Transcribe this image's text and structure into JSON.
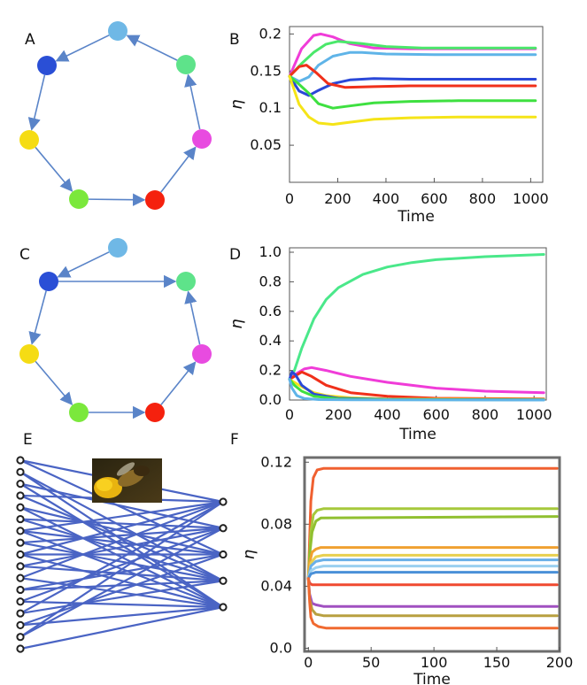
{
  "panels": {
    "A": {
      "label": "A"
    },
    "B": {
      "label": "B"
    },
    "C": {
      "label": "C"
    },
    "D": {
      "label": "D"
    },
    "E": {
      "label": "E"
    },
    "F": {
      "label": "F"
    }
  },
  "graphs": {
    "A": {
      "node_colors": [
        "#6fb8e6",
        "#5ee38a",
        "#e84be0",
        "#f5210e",
        "#7be83c",
        "#f5dc14",
        "#2a4fd6"
      ],
      "edges": [
        [
          1,
          0
        ],
        [
          0,
          6
        ],
        [
          6,
          5
        ],
        [
          5,
          4
        ],
        [
          4,
          3
        ],
        [
          3,
          2
        ],
        [
          2,
          1
        ]
      ],
      "edge_color": "#5a84c8"
    },
    "C": {
      "node_colors": [
        "#6fb8e6",
        "#5ee38a",
        "#e84be0",
        "#f5210e",
        "#7be83c",
        "#f5dc14",
        "#2a4fd6"
      ],
      "edges": [
        [
          0,
          6
        ],
        [
          6,
          1
        ],
        [
          6,
          5
        ],
        [
          5,
          4
        ],
        [
          4,
          3
        ],
        [
          3,
          2
        ],
        [
          2,
          1
        ]
      ],
      "edge_color": "#5a84c8"
    },
    "E": {
      "left_count": 17,
      "right_count": 5,
      "edge_color": "#4a64c4",
      "edges": [
        [
          0,
          0
        ],
        [
          0,
          2
        ],
        [
          1,
          3
        ],
        [
          1,
          4
        ],
        [
          2,
          1
        ],
        [
          2,
          4
        ],
        [
          3,
          0
        ],
        [
          3,
          3
        ],
        [
          4,
          2
        ],
        [
          4,
          4
        ],
        [
          5,
          1
        ],
        [
          5,
          3
        ],
        [
          6,
          0
        ],
        [
          6,
          2
        ],
        [
          6,
          4
        ],
        [
          7,
          1
        ],
        [
          7,
          3
        ],
        [
          8,
          0
        ],
        [
          8,
          2
        ],
        [
          8,
          4
        ],
        [
          9,
          1
        ],
        [
          9,
          3
        ],
        [
          10,
          0
        ],
        [
          10,
          4
        ],
        [
          11,
          2
        ],
        [
          11,
          3
        ],
        [
          12,
          1
        ],
        [
          12,
          4
        ],
        [
          13,
          0
        ],
        [
          13,
          3
        ],
        [
          14,
          2
        ],
        [
          14,
          4
        ],
        [
          15,
          0
        ],
        [
          15,
          1
        ],
        [
          16,
          4
        ]
      ]
    }
  },
  "chart_data": [
    {
      "id": "B",
      "type": "line",
      "xlabel": "Time",
      "ylabel": "η",
      "xlim": [
        0,
        1050
      ],
      "ylim": [
        0,
        0.21
      ],
      "xticks": [
        0,
        200,
        400,
        600,
        800,
        1000
      ],
      "yticks": [
        0.05,
        0.1,
        0.15,
        0.2
      ],
      "ytick_labels": [
        "0.05",
        "0.1",
        "0.15",
        "0.2"
      ],
      "series": [
        {
          "color": "#f03cd8",
          "x": [
            0,
            50,
            100,
            130,
            180,
            250,
            350,
            500,
            700,
            1020
          ],
          "y": [
            0.143,
            0.18,
            0.198,
            0.2,
            0.196,
            0.187,
            0.181,
            0.18,
            0.18,
            0.18
          ]
        },
        {
          "color": "#4ae86a",
          "x": [
            0,
            50,
            100,
            150,
            200,
            300,
            400,
            550,
            700,
            1020
          ],
          "y": [
            0.143,
            0.16,
            0.175,
            0.186,
            0.19,
            0.187,
            0.183,
            0.181,
            0.181,
            0.181
          ]
        },
        {
          "color": "#5fb4e8",
          "x": [
            0,
            40,
            80,
            120,
            180,
            250,
            300,
            400,
            600,
            1020
          ],
          "y": [
            0.143,
            0.136,
            0.142,
            0.158,
            0.17,
            0.175,
            0.175,
            0.173,
            0.172,
            0.172
          ]
        },
        {
          "color": "#2a48d8",
          "x": [
            0,
            40,
            80,
            120,
            180,
            250,
            350,
            500,
            700,
            1020
          ],
          "y": [
            0.143,
            0.123,
            0.117,
            0.124,
            0.133,
            0.138,
            0.14,
            0.139,
            0.139,
            0.139
          ]
        },
        {
          "color": "#f0301a",
          "x": [
            0,
            40,
            70,
            110,
            160,
            230,
            350,
            500,
            700,
            1020
          ],
          "y": [
            0.143,
            0.156,
            0.158,
            0.148,
            0.133,
            0.128,
            0.129,
            0.13,
            0.13,
            0.13
          ]
        },
        {
          "color": "#3ee040",
          "x": [
            0,
            40,
            80,
            120,
            180,
            250,
            350,
            500,
            700,
            1020
          ],
          "y": [
            0.143,
            0.132,
            0.12,
            0.106,
            0.1,
            0.103,
            0.107,
            0.109,
            0.11,
            0.11
          ]
        },
        {
          "color": "#f5e418",
          "x": [
            0,
            40,
            80,
            120,
            180,
            250,
            350,
            500,
            700,
            1020
          ],
          "y": [
            0.143,
            0.105,
            0.088,
            0.08,
            0.078,
            0.081,
            0.085,
            0.087,
            0.088,
            0.088
          ]
        }
      ]
    },
    {
      "id": "D",
      "type": "line",
      "xlabel": "Time",
      "ylabel": "η",
      "xlim": [
        0,
        1050
      ],
      "ylim": [
        0,
        1.03
      ],
      "xticks": [
        0,
        200,
        400,
        600,
        800,
        1000
      ],
      "yticks": [
        0,
        0.2,
        0.4,
        0.6,
        0.8,
        1.0
      ],
      "ytick_labels": [
        "0.0",
        "0.2",
        "0.4",
        "0.6",
        "0.8",
        "1.0"
      ],
      "series": [
        {
          "color": "#4ae88a",
          "x": [
            0,
            20,
            50,
            100,
            150,
            200,
            300,
            400,
            500,
            600,
            800,
            1040
          ],
          "y": [
            0.14,
            0.2,
            0.35,
            0.55,
            0.68,
            0.76,
            0.85,
            0.9,
            0.93,
            0.95,
            0.97,
            0.985
          ]
        },
        {
          "color": "#f03cd8",
          "x": [
            0,
            30,
            60,
            90,
            150,
            250,
            400,
            600,
            800,
            1040
          ],
          "y": [
            0.14,
            0.18,
            0.21,
            0.22,
            0.2,
            0.16,
            0.12,
            0.08,
            0.06,
            0.05
          ]
        },
        {
          "color": "#f0301a",
          "x": [
            0,
            20,
            50,
            90,
            150,
            250,
            400,
            600,
            1040
          ],
          "y": [
            0.14,
            0.16,
            0.19,
            0.16,
            0.1,
            0.05,
            0.025,
            0.012,
            0.008
          ]
        },
        {
          "color": "#f5e418",
          "x": [
            0,
            20,
            50,
            100,
            150,
            250,
            400,
            1040
          ],
          "y": [
            0.14,
            0.12,
            0.09,
            0.05,
            0.03,
            0.015,
            0.008,
            0.004
          ]
        },
        {
          "color": "#2a48d8",
          "x": [
            0,
            10,
            25,
            50,
            100,
            200,
            400,
            1040
          ],
          "y": [
            0.14,
            0.19,
            0.17,
            0.1,
            0.04,
            0.012,
            0.004,
            0.002
          ]
        },
        {
          "color": "#3ee040",
          "x": [
            0,
            20,
            50,
            100,
            200,
            400,
            1040
          ],
          "y": [
            0.14,
            0.1,
            0.06,
            0.025,
            0.008,
            0.003,
            0.001
          ]
        },
        {
          "color": "#5fb4e8",
          "x": [
            0,
            10,
            30,
            60,
            120,
            250,
            1040
          ],
          "y": [
            0.14,
            0.08,
            0.03,
            0.01,
            0.003,
            0.001,
            0.0
          ]
        }
      ]
    },
    {
      "id": "F",
      "type": "line",
      "xlabel": "Time",
      "ylabel": "η",
      "xlim": [
        -3,
        200
      ],
      "ylim": [
        -0.002,
        0.123
      ],
      "xticks": [
        0,
        50,
        100,
        150,
        200
      ],
      "yticks": [
        0.0,
        0.04,
        0.08,
        0.12
      ],
      "ytick_labels": [
        "0.0",
        "0.04",
        "0.08",
        "0.12"
      ],
      "frame": "gray",
      "series": [
        {
          "color": "#f06030",
          "x": [
            0,
            1,
            2,
            4,
            7,
            12,
            198
          ],
          "y": [
            0.045,
            0.07,
            0.095,
            0.11,
            0.115,
            0.116,
            0.116
          ]
        },
        {
          "color": "#a6c83c",
          "x": [
            0,
            1,
            2,
            4,
            7,
            12,
            198
          ],
          "y": [
            0.045,
            0.06,
            0.075,
            0.086,
            0.089,
            0.09,
            0.09
          ]
        },
        {
          "color": "#90c030",
          "x": [
            0,
            1,
            3,
            6,
            10,
            198
          ],
          "y": [
            0.045,
            0.06,
            0.075,
            0.082,
            0.084,
            0.085
          ]
        },
        {
          "color": "#f0a030",
          "x": [
            0,
            1,
            3,
            6,
            10,
            198
          ],
          "y": [
            0.045,
            0.055,
            0.062,
            0.064,
            0.065,
            0.065
          ]
        },
        {
          "color": "#e8d050",
          "x": [
            0,
            2,
            6,
            12,
            198
          ],
          "y": [
            0.045,
            0.055,
            0.059,
            0.06,
            0.06
          ]
        },
        {
          "color": "#6ab0e8",
          "x": [
            0,
            2,
            6,
            12,
            198
          ],
          "y": [
            0.045,
            0.053,
            0.056,
            0.057,
            0.057
          ]
        },
        {
          "color": "#9ad0f0",
          "x": [
            0,
            2,
            6,
            12,
            198
          ],
          "y": [
            0.045,
            0.05,
            0.052,
            0.053,
            0.053
          ]
        },
        {
          "color": "#4a90d8",
          "x": [
            0,
            2,
            6,
            12,
            198
          ],
          "y": [
            0.045,
            0.048,
            0.049,
            0.049,
            0.049
          ]
        },
        {
          "color": "#f04a30",
          "x": [
            0,
            1,
            3,
            6,
            12,
            198
          ],
          "y": [
            0.045,
            0.042,
            0.041,
            0.041,
            0.041,
            0.041
          ]
        },
        {
          "color": "#a050c0",
          "x": [
            0,
            1,
            3,
            6,
            12,
            198
          ],
          "y": [
            0.045,
            0.035,
            0.029,
            0.028,
            0.027,
            0.027
          ]
        },
        {
          "color": "#b8a040",
          "x": [
            0,
            1,
            3,
            6,
            12,
            198
          ],
          "y": [
            0.045,
            0.032,
            0.025,
            0.022,
            0.021,
            0.021
          ]
        },
        {
          "color": "#f06a30",
          "x": [
            0,
            1,
            2,
            4,
            8,
            14,
            198
          ],
          "y": [
            0.045,
            0.03,
            0.02,
            0.016,
            0.014,
            0.013,
            0.013
          ]
        }
      ]
    }
  ]
}
